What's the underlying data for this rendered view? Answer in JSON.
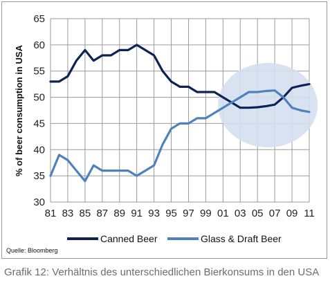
{
  "chart_data": {
    "type": "line",
    "ylabel": "% of beer consumption in USA",
    "xlabel": "",
    "ylim": [
      30,
      65
    ],
    "yticks": [
      30,
      35,
      40,
      45,
      50,
      55,
      60,
      65
    ],
    "x": [
      81,
      82,
      83,
      84,
      85,
      86,
      87,
      88,
      89,
      90,
      91,
      92,
      93,
      94,
      95,
      96,
      97,
      98,
      99,
      0,
      1,
      2,
      3,
      4,
      5,
      6,
      7,
      8,
      9,
      10,
      11
    ],
    "xtick_labels": [
      "81",
      "83",
      "85",
      "87",
      "89",
      "91",
      "93",
      "95",
      "97",
      "99",
      "01",
      "03",
      "05",
      "07",
      "09",
      "11"
    ],
    "grid": true,
    "legend": "bottom",
    "series": [
      {
        "name": "Canned Beer",
        "color": "#0d2353",
        "values": [
          53,
          53,
          54,
          57,
          59,
          57,
          58,
          58,
          59,
          59,
          60,
          59,
          58,
          55,
          53,
          52,
          52,
          51,
          51,
          51,
          50,
          49,
          48,
          48,
          48.1,
          48.3,
          48.6,
          50,
          51.8,
          52.2,
          52.5
        ]
      },
      {
        "name": "Glass & Draft Beer",
        "color": "#4f81bd",
        "values": [
          35,
          39,
          38,
          36,
          34,
          37,
          36,
          36,
          36,
          36,
          35,
          36,
          37,
          41,
          44,
          45,
          45,
          46,
          46,
          47,
          48,
          49,
          50,
          51,
          51,
          51.2,
          51.3,
          50,
          48,
          47.5,
          47.2
        ]
      }
    ],
    "highlight": {
      "shape": "ellipse",
      "color": "#d5dff0"
    }
  },
  "source": "Quelle: Bloomberg",
  "caption": "Grafik 12: Verhältnis des unterschiedlichen Bierkonsums in den USA"
}
